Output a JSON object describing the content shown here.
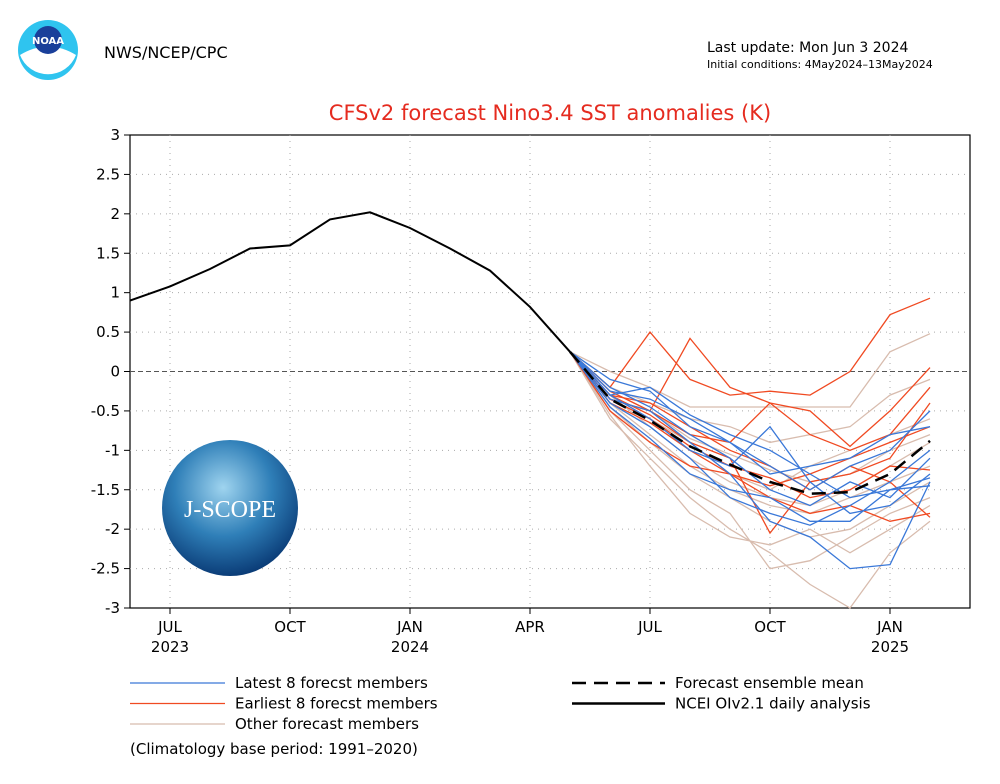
{
  "chart_data": {
    "type": "line",
    "source": "NWS/NCEP/CPC",
    "last_update": "Last update: Mon Jun 3 2024",
    "initial_conditions": "Initial conditions: 4May2024–13May2024",
    "title": "CFSv2 forecast Nino3.4 SST anomalies (K)",
    "footnote": "(Climatology base period: 1991–2020)",
    "logos": {
      "noaa": "NOAA",
      "jscope": "J-SCOPE"
    },
    "xlim": [
      "2023-06",
      "2025-03"
    ],
    "xticks": [
      {
        "value": "2023-07",
        "label": "JUL"
      },
      {
        "value": "2023-10",
        "label": "OCT"
      },
      {
        "value": "2024-01",
        "label": "JAN"
      },
      {
        "value": "2024-04",
        "label": "APR"
      },
      {
        "value": "2024-07",
        "label": "JUL"
      },
      {
        "value": "2024-10",
        "label": "OCT"
      },
      {
        "value": "2025-01",
        "label": "JAN"
      }
    ],
    "x_year_labels": [
      {
        "value": "2023-07",
        "label": "2023"
      },
      {
        "value": "2024-01",
        "label": "2024"
      },
      {
        "value": "2025-01",
        "label": "2025"
      }
    ],
    "ylim": [
      -3,
      3
    ],
    "yticks": [
      -3,
      -2.5,
      -2,
      -1.5,
      -1,
      -0.5,
      0,
      0.5,
      1,
      1.5,
      2,
      2.5,
      3
    ],
    "grid": true,
    "series": [
      {
        "name": "Latest 8 forecst members",
        "color": "#3a78d8",
        "x": [
          "2024-05",
          "2024-06",
          "2024-07",
          "2024-08",
          "2024-09",
          "2024-10",
          "2024-11",
          "2024-12",
          "2025-01",
          "2025-02"
        ],
        "members": [
          [
            0.25,
            -0.3,
            -0.2,
            -0.55,
            -0.8,
            -1.0,
            -1.3,
            -1.6,
            -1.5,
            -1.35
          ],
          [
            0.25,
            -0.1,
            -0.25,
            -0.7,
            -0.9,
            -1.2,
            -1.5,
            -1.2,
            -1.0,
            -0.5
          ],
          [
            0.25,
            -0.35,
            -0.5,
            -0.9,
            -1.3,
            -1.9,
            -2.1,
            -2.5,
            -2.45,
            -1.4
          ],
          [
            0.25,
            -0.2,
            -0.45,
            -0.8,
            -1.1,
            -1.5,
            -1.7,
            -1.4,
            -1.6,
            -1.1
          ],
          [
            0.25,
            -0.4,
            -0.7,
            -1.1,
            -1.6,
            -1.8,
            -1.95,
            -1.7,
            -1.4,
            -1.0
          ],
          [
            0.25,
            -0.3,
            -0.6,
            -1.0,
            -1.2,
            -0.7,
            -1.4,
            -1.8,
            -1.7,
            -1.3
          ],
          [
            0.25,
            -0.25,
            -0.35,
            -0.6,
            -0.9,
            -1.3,
            -1.2,
            -1.1,
            -0.8,
            -0.7
          ],
          [
            0.25,
            -0.45,
            -0.85,
            -1.3,
            -1.5,
            -1.6,
            -1.9,
            -1.9,
            -1.5,
            -1.45
          ]
        ]
      },
      {
        "name": "Earliest 8 forecst members",
        "color": "#f04a22",
        "x": [
          "2024-05",
          "2024-06",
          "2024-07",
          "2024-08",
          "2024-09",
          "2024-10",
          "2024-11",
          "2024-12",
          "2025-01",
          "2025-02"
        ],
        "members": [
          [
            0.25,
            -0.2,
            0.5,
            -0.1,
            -0.3,
            -0.25,
            -0.3,
            0.0,
            0.72,
            0.93
          ],
          [
            0.25,
            -0.35,
            -0.5,
            0.42,
            -0.2,
            -0.4,
            -0.5,
            -0.95,
            -0.5,
            0.05
          ],
          [
            0.25,
            -0.3,
            -0.4,
            -0.7,
            -1.0,
            -1.2,
            -1.5,
            -1.2,
            -1.4,
            -1.85
          ],
          [
            0.25,
            -0.4,
            -0.65,
            -1.0,
            -1.3,
            -1.6,
            -1.8,
            -1.7,
            -1.9,
            -1.8
          ],
          [
            0.25,
            -0.25,
            -0.5,
            -0.8,
            -0.9,
            -0.4,
            -0.8,
            -1.0,
            -0.8,
            -0.2
          ],
          [
            0.25,
            -0.5,
            -0.9,
            -1.2,
            -1.3,
            -1.45,
            -1.3,
            -1.1,
            -0.9,
            -0.7
          ],
          [
            0.25,
            -0.35,
            -0.6,
            -0.95,
            -1.2,
            -1.35,
            -1.6,
            -1.5,
            -1.2,
            -1.25
          ],
          [
            0.25,
            -0.3,
            -0.55,
            -0.9,
            -1.1,
            -2.05,
            -1.4,
            -1.3,
            -1.1,
            -0.4
          ]
        ]
      },
      {
        "name": "Other forecast members",
        "color": "#d8bcae",
        "x": [
          "2024-05",
          "2024-06",
          "2024-07",
          "2024-08",
          "2024-09",
          "2024-10",
          "2024-11",
          "2024-12",
          "2025-01",
          "2025-02"
        ],
        "members": [
          [
            0.25,
            0.0,
            -0.2,
            -0.45,
            -0.45,
            -0.45,
            -0.45,
            -0.45,
            0.25,
            0.48
          ],
          [
            0.25,
            -0.5,
            -1.0,
            -1.5,
            -1.8,
            -2.5,
            -2.4,
            -2.1,
            -1.8,
            -1.6
          ],
          [
            0.25,
            -0.6,
            -1.1,
            -1.6,
            -2.0,
            -2.3,
            -2.7,
            -3.0,
            -2.3,
            -1.9
          ],
          [
            0.25,
            -0.2,
            -0.4,
            -0.6,
            -0.7,
            -0.9,
            -0.8,
            -0.7,
            -0.3,
            -0.1
          ],
          [
            0.25,
            -0.45,
            -0.9,
            -1.3,
            -1.6,
            -1.9,
            -2.1,
            -2.0,
            -1.7,
            -1.4
          ],
          [
            0.25,
            -0.3,
            -0.7,
            -1.1,
            -1.4,
            -1.6,
            -1.7,
            -1.5,
            -1.2,
            -0.9
          ],
          [
            0.25,
            -0.55,
            -1.2,
            -1.8,
            -2.1,
            -2.2,
            -2.0,
            -2.3,
            -2.0,
            -1.7
          ],
          [
            0.25,
            -0.35,
            -0.6,
            -0.9,
            -1.3,
            -1.5,
            -1.2,
            -1.0,
            -0.8,
            -0.6
          ],
          [
            0.25,
            -0.4,
            -0.8,
            -1.2,
            -1.5,
            -1.7,
            -1.8,
            -1.6,
            -1.4,
            -1.2
          ],
          [
            0.25,
            -0.25,
            -0.5,
            -0.85,
            -1.05,
            -1.25,
            -1.4,
            -1.3,
            -1.0,
            -0.8
          ]
        ]
      },
      {
        "name": "Forecast ensemble mean",
        "color": "#000000",
        "dashed": true,
        "x": [
          "2024-05",
          "2024-06",
          "2024-07",
          "2024-08",
          "2024-09",
          "2024-10",
          "2024-11",
          "2024-12",
          "2025-01",
          "2025-02"
        ],
        "values": [
          0.25,
          -0.35,
          -0.62,
          -0.95,
          -1.18,
          -1.4,
          -1.55,
          -1.53,
          -1.3,
          -0.88
        ]
      },
      {
        "name": "NCEI OIv2.1 daily analysis",
        "color": "#000000",
        "x": [
          "2023-06",
          "2023-07",
          "2023-08",
          "2023-09",
          "2023-10",
          "2023-11",
          "2023-12",
          "2024-01",
          "2024-02",
          "2024-03",
          "2024-04",
          "2024-05"
        ],
        "values": [
          0.9,
          1.08,
          1.3,
          1.56,
          1.6,
          1.93,
          2.02,
          1.82,
          1.56,
          1.28,
          0.82,
          0.25
        ]
      }
    ]
  }
}
